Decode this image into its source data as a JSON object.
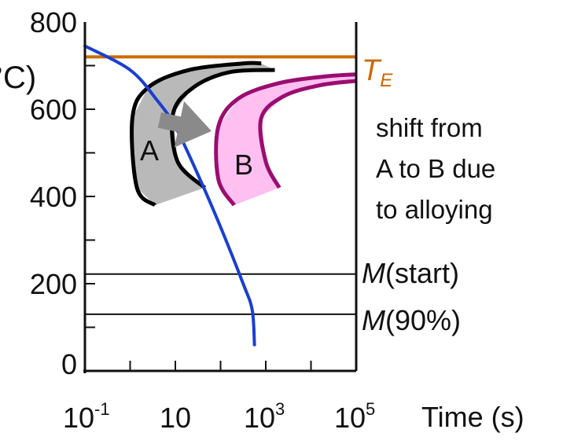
{
  "chart_data": {
    "type": "line",
    "ylabel": "°C)",
    "xlabel": "Time (s)",
    "ylim": [
      0,
      800
    ],
    "xlim_log10": [
      -1,
      5
    ],
    "y_ticks": [
      {
        "v": 0,
        "label": "0"
      },
      {
        "v": 200,
        "label": "200"
      },
      {
        "v": 400,
        "label": "400"
      },
      {
        "v": 600,
        "label": "600"
      },
      {
        "v": 800,
        "label": "800"
      }
    ],
    "x_ticks": [
      {
        "exp": -1,
        "base": "10",
        "sup": "-1"
      },
      {
        "exp": 1,
        "base": "10",
        "sup": ""
      },
      {
        "exp": 3,
        "base": "10",
        "sup": "3"
      },
      {
        "exp": 5,
        "base": "10",
        "sup": "5"
      }
    ],
    "cooling_curve": {
      "color": "#1a3fd0",
      "points": [
        [
          -1,
          745
        ],
        [
          0,
          690
        ],
        [
          0.6,
          620
        ],
        [
          1,
          560
        ],
        [
          1.5,
          450
        ],
        [
          2,
          330
        ],
        [
          2.5,
          200
        ],
        [
          2.7,
          140
        ],
        [
          2.75,
          60
        ]
      ]
    },
    "TE": {
      "value": 720,
      "label": "T",
      "sub": "E",
      "color": "#cc6a00"
    },
    "Mstart": {
      "value": 222,
      "label_italic": "M",
      "label_rest": "(start)"
    },
    "M90": {
      "value": 130,
      "label_italic": "M",
      "label_rest": "(90%)"
    },
    "regions": [
      {
        "name": "A",
        "fill": "#b9b9b9",
        "edge": "#000000",
        "start": [
          [
            0.55,
            380
          ],
          [
            0.15,
            420
          ],
          [
            0.05,
            580
          ],
          [
            0.4,
            650
          ],
          [
            1.3,
            690
          ],
          [
            2.5,
            705
          ],
          [
            2.9,
            705
          ]
        ],
        "finish": [
          [
            1.65,
            420
          ],
          [
            1.05,
            480
          ],
          [
            0.95,
            590
          ],
          [
            1.4,
            650
          ],
          [
            2.2,
            685
          ],
          [
            3.2,
            690
          ]
        ]
      },
      {
        "name": "B",
        "fill": "#ffbff0",
        "edge": "#9a0d6f",
        "start": [
          [
            2.3,
            380
          ],
          [
            1.95,
            440
          ],
          [
            1.95,
            560
          ],
          [
            2.4,
            625
          ],
          [
            3.3,
            660
          ],
          [
            4.3,
            675
          ],
          [
            5,
            680
          ]
        ],
        "finish": [
          [
            3.3,
            420
          ],
          [
            3.0,
            480
          ],
          [
            2.9,
            580
          ],
          [
            3.4,
            630
          ],
          [
            4.2,
            655
          ],
          [
            5,
            665
          ]
        ]
      }
    ],
    "shift_arrow": {
      "from": [
        0.65,
        575
      ],
      "to": [
        1.8,
        550
      ]
    },
    "annotation": [
      "shift from",
      "A to B due",
      "to alloying"
    ],
    "colors": {
      "axis": "#111111",
      "gray_arrow": "#8a8a8a"
    }
  }
}
